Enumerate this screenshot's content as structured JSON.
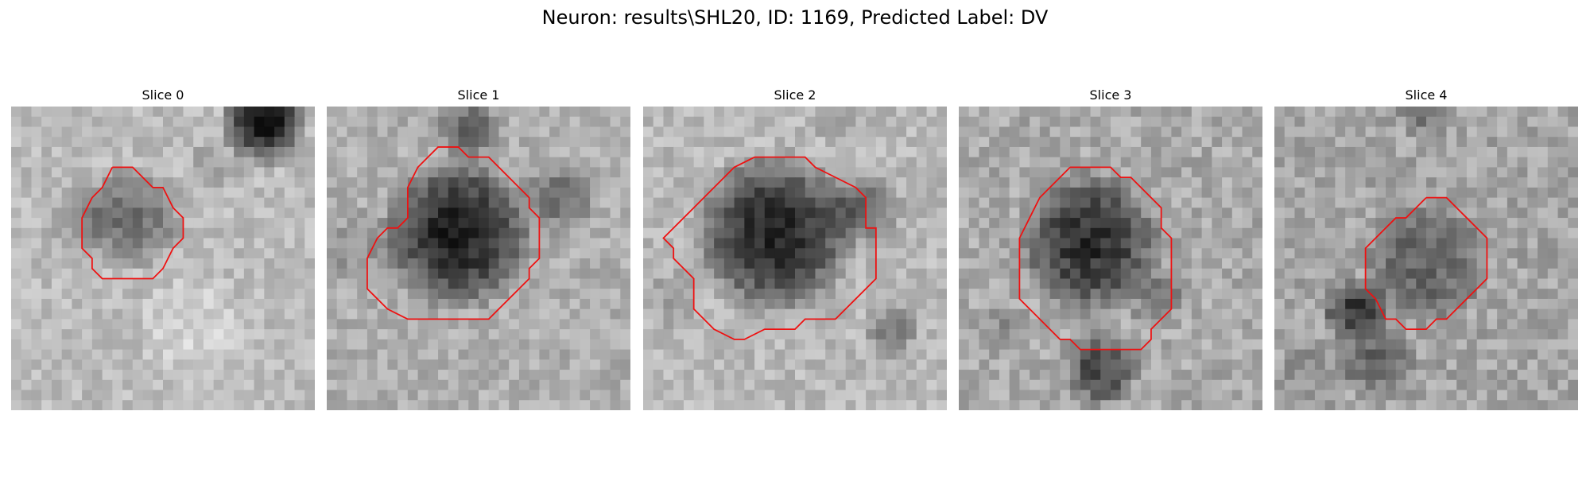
{
  "figure": {
    "title": "Neuron: results\\SHL20, ID: 1169, Predicted Label: DV"
  },
  "overlay_color": "#ee1111",
  "panels": [
    {
      "title": "Slice 0",
      "mean_level": 188,
      "level_spread": 44,
      "contour": [
        [
          10,
          6
        ],
        [
          12,
          6
        ],
        [
          14,
          8
        ],
        [
          15,
          8
        ],
        [
          16,
          10
        ],
        [
          17,
          11
        ],
        [
          17,
          13
        ],
        [
          16,
          14
        ],
        [
          15,
          16
        ],
        [
          14,
          17
        ],
        [
          10,
          17
        ],
        [
          9,
          17
        ],
        [
          8,
          16
        ],
        [
          8,
          15
        ],
        [
          7,
          14
        ],
        [
          7,
          11
        ],
        [
          8,
          9
        ],
        [
          9,
          8
        ],
        [
          10,
          6
        ]
      ],
      "features": [
        {
          "x": 12,
          "y": 11,
          "r": 5.5,
          "d": 75
        },
        {
          "x": 25,
          "y": 1.5,
          "r": 4.5,
          "d": 170
        },
        {
          "x": 7,
          "y": 11,
          "r": 4,
          "d": 35
        },
        {
          "x": 20,
          "y": 6,
          "r": 3,
          "d": 30
        },
        {
          "x": 18,
          "y": 22,
          "r": 6,
          "d": -25
        }
      ]
    },
    {
      "title": "Slice 1",
      "mean_level": 175,
      "level_spread": 48,
      "contour": [
        [
          10,
          5
        ],
        [
          11,
          4
        ],
        [
          13,
          4
        ],
        [
          14,
          5
        ],
        [
          16,
          5
        ],
        [
          17,
          6
        ],
        [
          18,
          7
        ],
        [
          19,
          8
        ],
        [
          20,
          9
        ],
        [
          20,
          10
        ],
        [
          21,
          11
        ],
        [
          21,
          15
        ],
        [
          20,
          16
        ],
        [
          20,
          17
        ],
        [
          19,
          18
        ],
        [
          18,
          19
        ],
        [
          17,
          20
        ],
        [
          16,
          21
        ],
        [
          10,
          21
        ],
        [
          8,
          21
        ],
        [
          6,
          20
        ],
        [
          5,
          19
        ],
        [
          4,
          18
        ],
        [
          4,
          15
        ],
        [
          5,
          13
        ],
        [
          6,
          12
        ],
        [
          7,
          12
        ],
        [
          8,
          11
        ],
        [
          8,
          8
        ],
        [
          9,
          6
        ],
        [
          10,
          5
        ]
      ],
      "features": [
        {
          "x": 13,
          "y": 12.5,
          "r": 8,
          "d": 145
        },
        {
          "x": 14,
          "y": 2,
          "r": 3.5,
          "d": 70
        },
        {
          "x": 23,
          "y": 9,
          "r": 4,
          "d": 60
        },
        {
          "x": 3,
          "y": 14,
          "r": 4,
          "d": 30
        }
      ]
    },
    {
      "title": "Slice 2",
      "mean_level": 185,
      "level_spread": 46,
      "contour": [
        [
          11,
          5
        ],
        [
          13,
          5
        ],
        [
          16,
          5
        ],
        [
          17,
          6
        ],
        [
          19,
          7
        ],
        [
          21,
          8
        ],
        [
          22,
          9
        ],
        [
          22,
          12
        ],
        [
          23,
          12
        ],
        [
          23,
          17
        ],
        [
          22,
          18
        ],
        [
          21,
          19
        ],
        [
          20,
          20
        ],
        [
          19,
          21
        ],
        [
          16,
          21
        ],
        [
          15,
          22
        ],
        [
          12,
          22
        ],
        [
          10,
          23
        ],
        [
          9,
          23
        ],
        [
          7,
          22
        ],
        [
          6,
          21
        ],
        [
          5,
          20
        ],
        [
          5,
          17
        ],
        [
          4,
          16
        ],
        [
          3,
          15
        ],
        [
          3,
          14
        ],
        [
          2,
          13
        ],
        [
          3,
          12
        ],
        [
          4,
          11
        ],
        [
          5,
          10
        ],
        [
          6,
          9
        ],
        [
          7,
          8
        ],
        [
          8,
          7
        ],
        [
          9,
          6
        ],
        [
          11,
          5
        ]
      ],
      "features": [
        {
          "x": 13,
          "y": 12.5,
          "r": 8.5,
          "d": 150
        },
        {
          "x": 22,
          "y": 10,
          "r": 4,
          "d": 80
        },
        {
          "x": 3,
          "y": 19,
          "r": 3,
          "d": 30
        },
        {
          "x": 24.5,
          "y": 22,
          "r": 3,
          "d": 55
        },
        {
          "x": 19,
          "y": 1,
          "r": 2.5,
          "d": 40
        }
      ]
    },
    {
      "title": "Slice 3",
      "mean_level": 170,
      "level_spread": 55,
      "contour": [
        [
          11,
          6
        ],
        [
          15,
          6
        ],
        [
          16,
          7
        ],
        [
          17,
          7
        ],
        [
          18,
          8
        ],
        [
          19,
          9
        ],
        [
          20,
          10
        ],
        [
          20,
          12
        ],
        [
          21,
          13
        ],
        [
          21,
          20
        ],
        [
          20,
          21
        ],
        [
          19,
          22
        ],
        [
          19,
          23
        ],
        [
          18,
          24
        ],
        [
          15,
          24
        ],
        [
          12,
          24
        ],
        [
          11,
          23
        ],
        [
          10,
          23
        ],
        [
          9,
          22
        ],
        [
          8,
          21
        ],
        [
          7,
          20
        ],
        [
          6,
          19
        ],
        [
          6,
          13
        ],
        [
          7,
          11
        ],
        [
          8,
          9
        ],
        [
          9,
          8
        ],
        [
          10,
          7
        ],
        [
          11,
          6
        ]
      ],
      "features": [
        {
          "x": 13,
          "y": 13.5,
          "r": 7.5,
          "d": 125
        },
        {
          "x": 14,
          "y": 26,
          "r": 4,
          "d": 100
        },
        {
          "x": 19.5,
          "y": 19,
          "r": 3,
          "d": 55
        },
        {
          "x": 4,
          "y": 22,
          "r": 3,
          "d": 30
        }
      ]
    },
    {
      "title": "Slice 4",
      "mean_level": 165,
      "level_spread": 55,
      "contour": [
        [
          15,
          9
        ],
        [
          17,
          9
        ],
        [
          18,
          10
        ],
        [
          19,
          11
        ],
        [
          20,
          12
        ],
        [
          21,
          13
        ],
        [
          21,
          17
        ],
        [
          20,
          18
        ],
        [
          19,
          19
        ],
        [
          18,
          20
        ],
        [
          17,
          21
        ],
        [
          16,
          21
        ],
        [
          15,
          22
        ],
        [
          13,
          22
        ],
        [
          12,
          21
        ],
        [
          11,
          21
        ],
        [
          10,
          19
        ],
        [
          9,
          18
        ],
        [
          9,
          14
        ],
        [
          10,
          13
        ],
        [
          11,
          12
        ],
        [
          12,
          11
        ],
        [
          13,
          11
        ],
        [
          15,
          9
        ]
      ],
      "features": [
        {
          "x": 15,
          "y": 15.5,
          "r": 6.5,
          "d": 70
        },
        {
          "x": 8,
          "y": 20,
          "r": 3.5,
          "d": 110
        },
        {
          "x": 10,
          "y": 25,
          "r": 4,
          "d": 70
        },
        {
          "x": 15,
          "y": 0.5,
          "r": 3,
          "d": 45
        },
        {
          "x": 3,
          "y": 26,
          "r": 3,
          "d": 30
        }
      ]
    }
  ]
}
